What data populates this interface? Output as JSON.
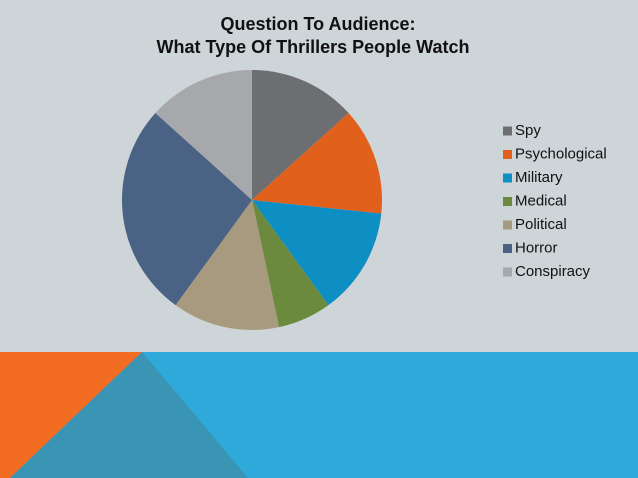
{
  "chart_data": {
    "type": "pie",
    "title": [
      "Question To Audience:",
      "What Type Of Thrillers People Watch"
    ],
    "categories": [
      "Spy",
      "Psychological",
      "Military",
      "Medical",
      "Political",
      "Horror",
      "Conspiracy"
    ],
    "values": [
      2,
      2,
      2,
      1,
      2,
      4,
      2
    ],
    "colors": [
      "#6d6e71",
      "#e0601c",
      "#0e8fc4",
      "#6b8a3d",
      "#a89a7e",
      "#4a6284",
      "#a6a8ab"
    ],
    "legend": "right"
  }
}
